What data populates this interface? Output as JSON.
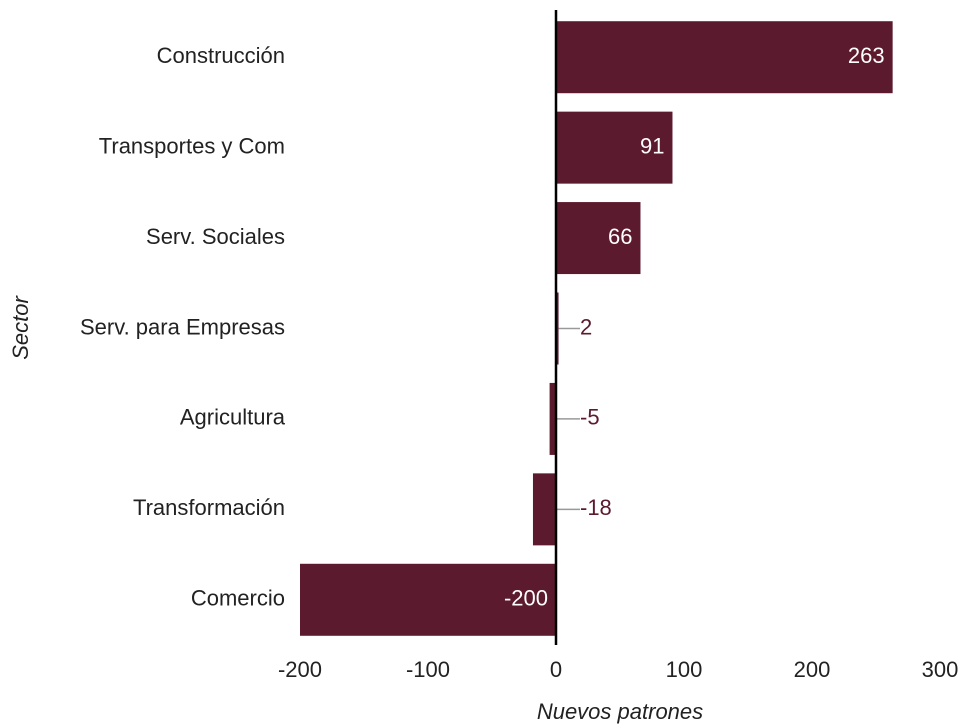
{
  "chart_data": {
    "type": "bar",
    "orientation": "horizontal",
    "categories": [
      "Construcción",
      "Transportes y Com",
      "Serv. Sociales",
      "Serv. para Empresas",
      "Agricultura",
      "Transformación",
      "Comercio"
    ],
    "values": [
      263,
      91,
      66,
      2,
      -5,
      -18,
      -200
    ],
    "color": "#5c1a2e",
    "xlim": [
      -200,
      300
    ],
    "xticks": [
      -200,
      -100,
      0,
      100,
      200,
      300
    ],
    "xlabel": "Nuevos patrones",
    "ylabel": "Sector",
    "grid": false
  }
}
